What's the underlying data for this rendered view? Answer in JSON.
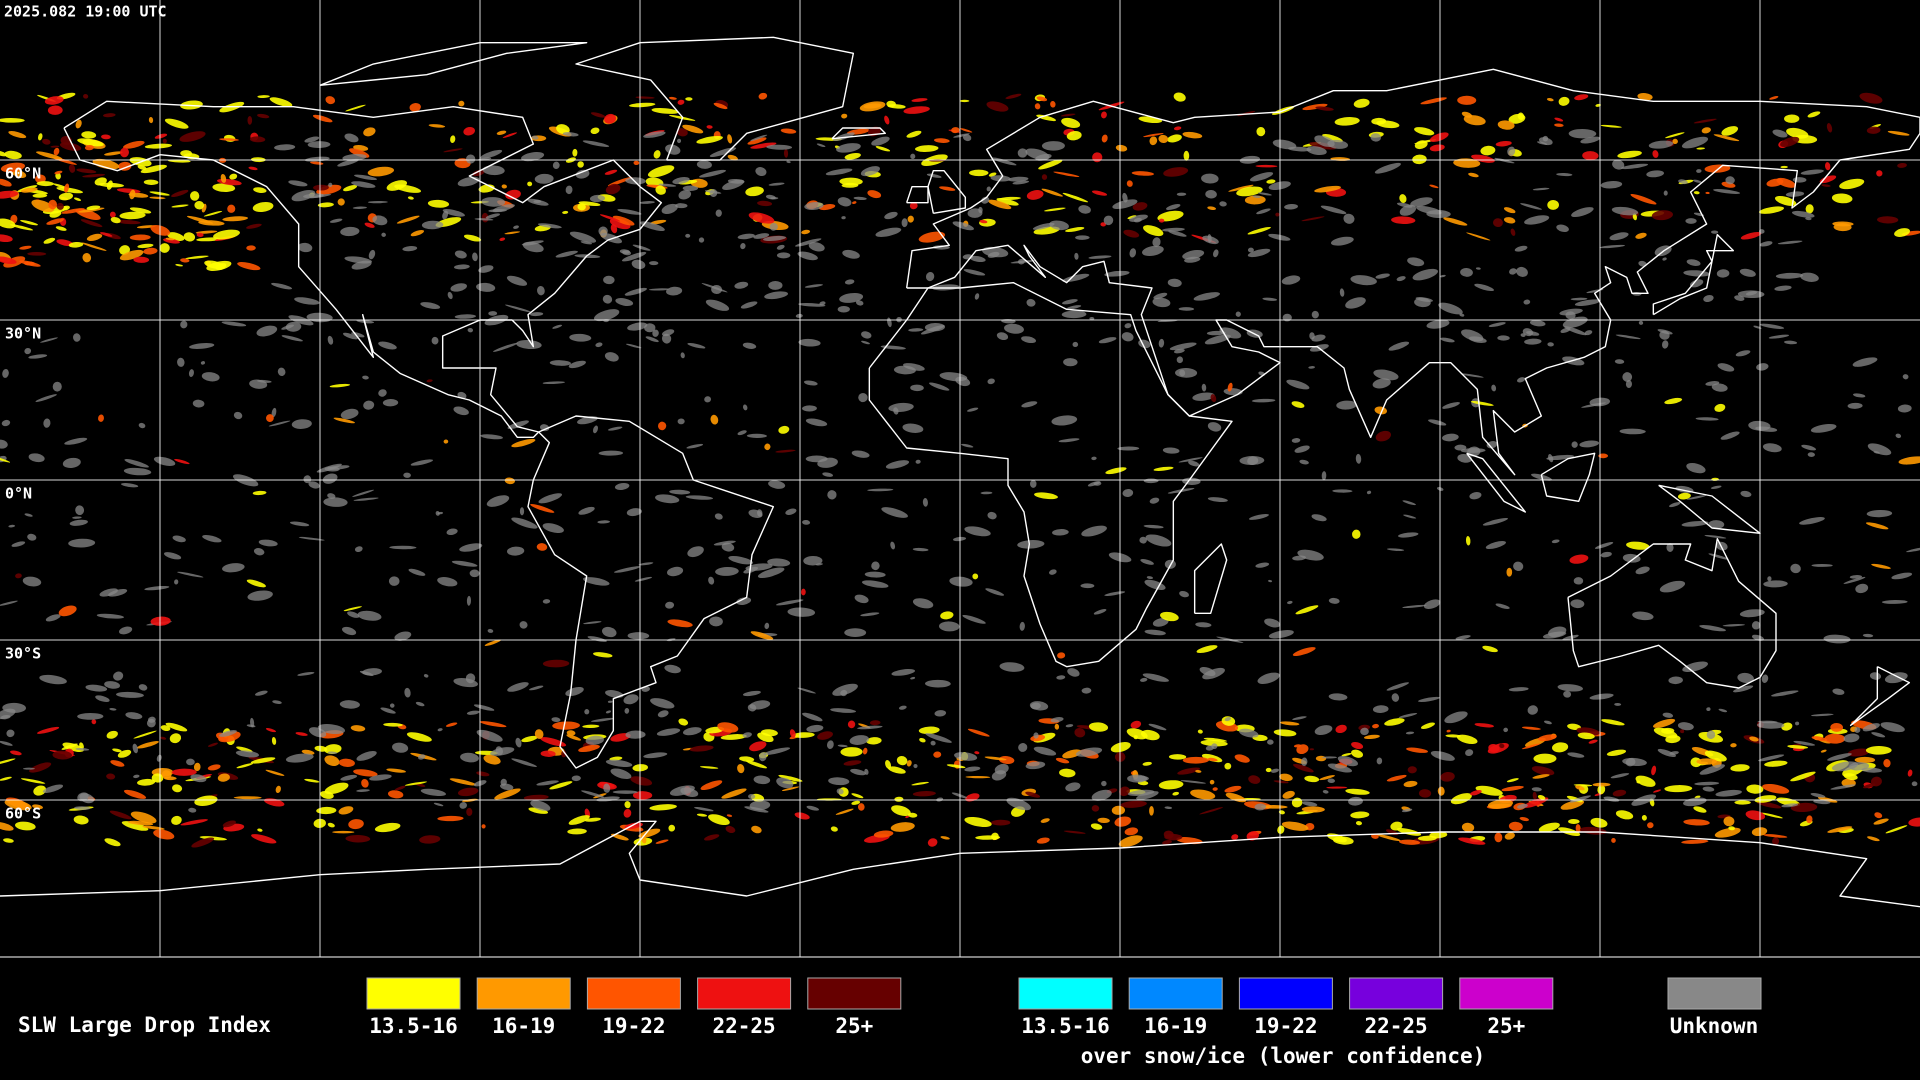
{
  "timestamp": "2025.082 19:00 UTC",
  "lat_labels": [
    "60°N",
    "30°N",
    "0°N",
    "30°S",
    "60°S"
  ],
  "legend": {
    "title": "SLW Large Drop Index",
    "items": [
      {
        "label": "13.5-16",
        "color": "#ffff00"
      },
      {
        "label": "16-19",
        "color": "#ff9900"
      },
      {
        "label": "19-22",
        "color": "#ff5500"
      },
      {
        "label": "22-25",
        "color": "#ee1111"
      },
      {
        "label": "25+",
        "color": "#660000"
      }
    ],
    "snow_ice_items": [
      {
        "label": "13.5-16",
        "color": "#00ffff"
      },
      {
        "label": "16-19",
        "color": "#0088ff"
      },
      {
        "label": "19-22",
        "color": "#0000ff"
      },
      {
        "label": "22-25",
        "color": "#7700dd"
      },
      {
        "label": "25+",
        "color": "#cc00cc"
      }
    ],
    "snow_ice_note": "over snow/ice (lower confidence)",
    "unknown": {
      "label": "Unknown",
      "color": "#888888"
    }
  }
}
